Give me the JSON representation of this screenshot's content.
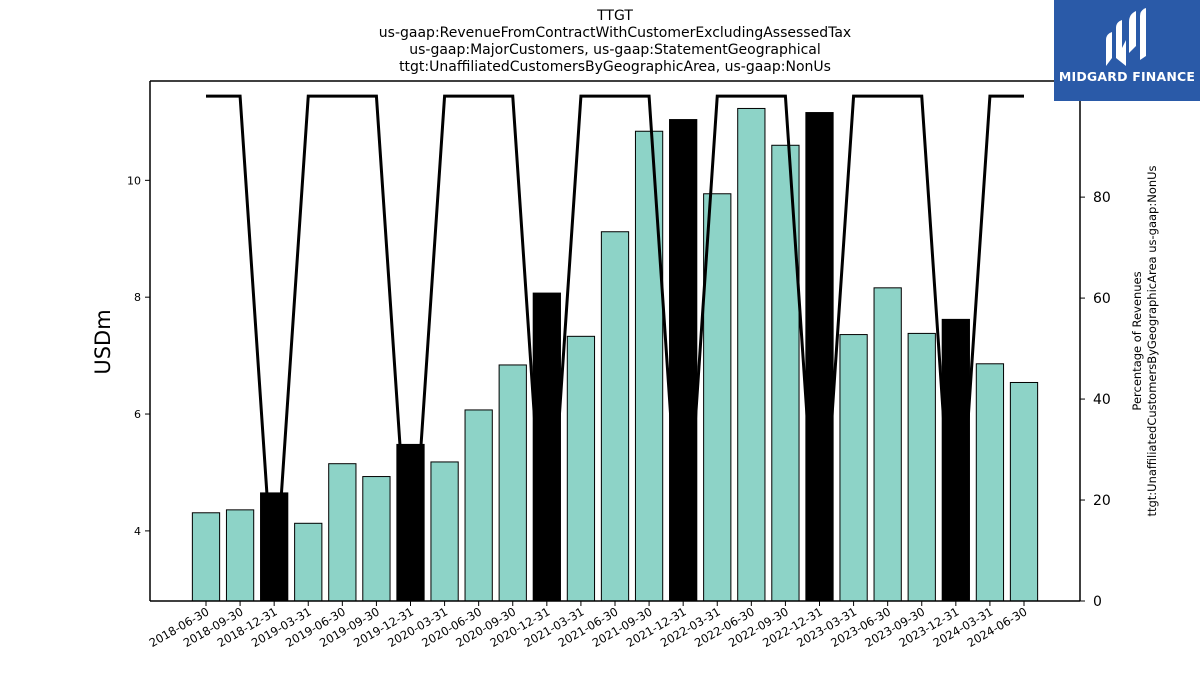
{
  "logo": {
    "text": "MIDGARD FINANCE"
  },
  "chart_data": {
    "type": "bar",
    "title_lines": [
      "TTGT",
      "us-gaap:RevenueFromContractWithCustomerExcludingAssessedTax",
      "us-gaap:MajorCustomers, us-gaap:StatementGeographical",
      "ttgt:UnaffiliatedCustomersByGeographicArea, us-gaap:NonUs"
    ],
    "ylabel": "USDm",
    "y2label_lines": [
      "Percentage of Revenues",
      "ttgt:UnaffiliatedCustomersByGeographicArea us-gaap:NonUs"
    ],
    "ylim": [
      2.8,
      11.7
    ],
    "yticks": [
      4,
      6,
      8,
      10
    ],
    "y2lim": [
      0,
      103
    ],
    "y2ticks": [
      0,
      20,
      40,
      60,
      80,
      100
    ],
    "categories": [
      "2018-06-30",
      "2018-09-30",
      "2018-12-31",
      "2019-03-31",
      "2019-06-30",
      "2019-09-30",
      "2019-12-31",
      "2020-03-31",
      "2020-06-30",
      "2020-09-30",
      "2020-12-31",
      "2021-03-31",
      "2021-06-30",
      "2021-09-30",
      "2021-12-31",
      "2022-03-31",
      "2022-06-30",
      "2022-09-30",
      "2022-12-31",
      "2023-03-31",
      "2023-06-30",
      "2023-09-30",
      "2023-12-31",
      "2024-03-31",
      "2024-06-30"
    ],
    "series": [
      {
        "type": "bar",
        "values": [
          4.31,
          4.36,
          4.65,
          4.13,
          5.15,
          4.93,
          5.48,
          5.18,
          6.07,
          6.84,
          8.07,
          7.33,
          9.12,
          10.84,
          11.04,
          9.77,
          11.23,
          10.6,
          11.16,
          7.36,
          8.16,
          7.38,
          7.62,
          6.86,
          6.54
        ],
        "highlight_indices": [
          2,
          6,
          10,
          14,
          18,
          22
        ],
        "color": "#8dd3c7",
        "highlight_color": "#000000"
      },
      {
        "type": "line",
        "axis": "right",
        "values": [
          100,
          100,
          0,
          100,
          100,
          100,
          0,
          100,
          100,
          100,
          0,
          100,
          100,
          100,
          0,
          100,
          100,
          100,
          0,
          100,
          100,
          100,
          0,
          100,
          100
        ],
        "color": "#000000"
      }
    ]
  }
}
